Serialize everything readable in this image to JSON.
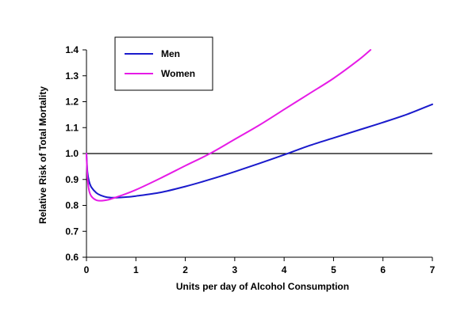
{
  "chart_data": {
    "type": "line",
    "title": "",
    "xlabel": "Units per day of Alcohol Consumption",
    "ylabel": "Relative Risk of Total Mortality",
    "xlim": [
      0,
      7
    ],
    "ylim": [
      0.6,
      1.4
    ],
    "x_ticks": [
      "0",
      "1",
      "2",
      "3",
      "4",
      "5",
      "6",
      "7"
    ],
    "y_ticks": [
      "0.6",
      "0.7",
      "0.8",
      "0.9",
      "1.0",
      "1.1",
      "1.2",
      "1.3",
      "1.4"
    ],
    "reference_line": 1.0,
    "grid": false,
    "legend_position": "top-left",
    "series": [
      {
        "name": "Men",
        "color": "#1a1acc",
        "x": [
          0,
          0.02,
          0.05,
          0.1,
          0.2,
          0.3,
          0.4,
          0.5,
          0.6,
          0.8,
          1.0,
          1.5,
          2.0,
          2.5,
          3.0,
          3.5,
          4.0,
          4.5,
          5.0,
          5.5,
          6.0,
          6.5,
          7.0
        ],
        "y": [
          1.0,
          0.93,
          0.895,
          0.87,
          0.848,
          0.838,
          0.832,
          0.83,
          0.83,
          0.832,
          0.836,
          0.85,
          0.873,
          0.9,
          0.93,
          0.962,
          0.995,
          1.03,
          1.06,
          1.09,
          1.12,
          1.152,
          1.19
        ]
      },
      {
        "name": "Women",
        "color": "#e61be6",
        "x": [
          0,
          0.02,
          0.05,
          0.1,
          0.2,
          0.3,
          0.4,
          0.5,
          0.7,
          1.0,
          1.5,
          2.0,
          2.5,
          3.0,
          3.5,
          4.0,
          4.5,
          5.0,
          5.5,
          5.75
        ],
        "y": [
          1.0,
          0.91,
          0.86,
          0.835,
          0.82,
          0.818,
          0.82,
          0.825,
          0.838,
          0.86,
          0.905,
          0.953,
          1.0,
          1.055,
          1.11,
          1.17,
          1.23,
          1.29,
          1.36,
          1.4
        ]
      }
    ]
  }
}
